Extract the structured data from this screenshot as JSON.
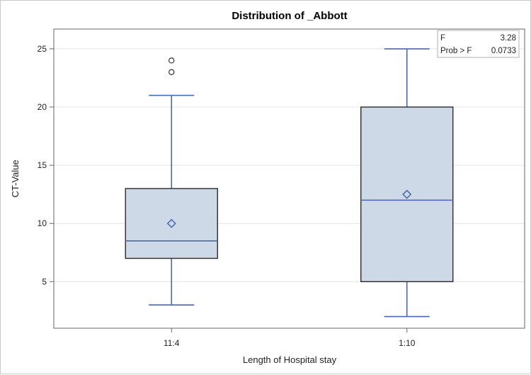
{
  "chart_data": {
    "type": "box",
    "title": "Distribution of _Abbott",
    "xlabel": "Length of Hospital stay",
    "ylabel": "CT-Value",
    "ylim": [
      1,
      26.7
    ],
    "yticks": [
      5,
      10,
      15,
      20,
      25
    ],
    "grid": true,
    "categories": [
      "11:4",
      "1:10"
    ],
    "boxes": [
      {
        "category": "11:4",
        "whisker_low": 3,
        "q1": 7,
        "median": 8.5,
        "q3": 13,
        "whisker_high": 21,
        "mean": 10,
        "outliers": [
          23,
          24
        ]
      },
      {
        "category": "1:10",
        "whisker_low": 2,
        "q1": 5,
        "median": 12,
        "q3": 20,
        "whisker_high": 25,
        "mean": 12.5,
        "outliers": []
      }
    ],
    "stats": [
      {
        "label": "F",
        "value": "3.28"
      },
      {
        "label": "Prob > F",
        "value": "0.0733"
      }
    ],
    "colors": {
      "box_fill": "#cdd9e6",
      "box_stroke": "#2b2b2b",
      "line": "#4a67b0",
      "grid": "#e4e4e4"
    }
  }
}
